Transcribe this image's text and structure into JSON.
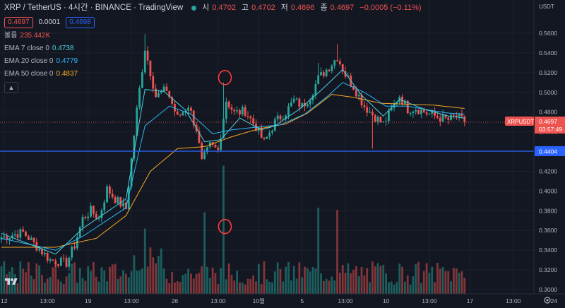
{
  "header": {
    "symbol": "XRP / TetherUS · 4시간 · BINANCE · TradingView",
    "o_label": "시",
    "o": "0.4702",
    "h_label": "고",
    "h": "0.4702",
    "l_label": "저",
    "l": "0.4696",
    "c_label": "종",
    "c": "0.4697",
    "change": "−0.0005 (−0.11%)",
    "bid": "0.4697",
    "spread": "0.0001",
    "ask": "0.4698"
  },
  "indicators": {
    "volume_label": "볼륨",
    "volume_value": "235.442K",
    "ema7_label": "EMA 7 close 0",
    "ema7_value": "0.4738",
    "ema20_label": "EMA 20 close 0",
    "ema20_value": "0.4779",
    "ema50_label": "EMA 50 close 0",
    "ema50_value": "0.4837",
    "collapse_icon": "chevron-up-icon"
  },
  "axis": {
    "currency": "USDT",
    "symbol_tag": "XRPUSDT",
    "last_price": "0.4697",
    "countdown": "03:57:49",
    "hline_price": "0.4404",
    "hline_value": 0.4404
  },
  "chart_data": {
    "type": "candlestick",
    "ylim": [
      0.3,
      0.565
    ],
    "yticks": [
      "0.5600",
      "0.5400",
      "0.5200",
      "0.5000",
      "0.4800",
      "0.4600",
      "0.4400",
      "0.4200",
      "0.4000",
      "0.3800",
      "0.3600",
      "0.3400",
      "0.3200",
      "0.3000"
    ],
    "ytick_values": [
      0.56,
      0.54,
      0.52,
      0.5,
      0.48,
      0.46,
      0.44,
      0.42,
      0.4,
      0.38,
      0.36,
      0.34,
      0.32,
      0.3
    ],
    "xticks": [
      "12",
      "13:00",
      "19",
      "13:00",
      "26",
      "13:00",
      "10월",
      "5",
      "13:00",
      "10",
      "13:00",
      "17",
      "13:00",
      "24"
    ],
    "xtick_index": [
      1,
      17,
      32,
      48,
      64,
      80,
      95,
      111,
      127,
      142,
      158,
      173,
      189,
      204
    ],
    "n_candles": 172,
    "anchors": [
      [
        0,
        0.353
      ],
      [
        8,
        0.358
      ],
      [
        18,
        0.33
      ],
      [
        24,
        0.327
      ],
      [
        27,
        0.345
      ],
      [
        30,
        0.372
      ],
      [
        33,
        0.38
      ],
      [
        36,
        0.372
      ],
      [
        39,
        0.402
      ],
      [
        42,
        0.392
      ],
      [
        46,
        0.382
      ],
      [
        50,
        0.482
      ],
      [
        53,
        0.545
      ],
      [
        57,
        0.496
      ],
      [
        61,
        0.503
      ],
      [
        65,
        0.474
      ],
      [
        69,
        0.487
      ],
      [
        72,
        0.463
      ],
      [
        74,
        0.429
      ],
      [
        77,
        0.446
      ],
      [
        80,
        0.441
      ],
      [
        83,
        0.492
      ],
      [
        86,
        0.479
      ],
      [
        90,
        0.481
      ],
      [
        94,
        0.465
      ],
      [
        97,
        0.449
      ],
      [
        101,
        0.47
      ],
      [
        105,
        0.48
      ],
      [
        108,
        0.492
      ],
      [
        111,
        0.486
      ],
      [
        114,
        0.496
      ],
      [
        117,
        0.514
      ],
      [
        121,
        0.526
      ],
      [
        124,
        0.536
      ],
      [
        127,
        0.518
      ],
      [
        130,
        0.506
      ],
      [
        134,
        0.486
      ],
      [
        138,
        0.475
      ],
      [
        141,
        0.468
      ],
      [
        144,
        0.482
      ],
      [
        147,
        0.497
      ],
      [
        150,
        0.483
      ],
      [
        153,
        0.484
      ],
      [
        157,
        0.479
      ],
      [
        161,
        0.475
      ],
      [
        165,
        0.472
      ],
      [
        168,
        0.476
      ],
      [
        171,
        0.4697
      ]
    ],
    "spikes": [
      [
        53,
        0.559,
        null
      ],
      [
        82,
        0.51,
        0.47
      ],
      [
        117,
        0.53,
        null
      ],
      [
        124,
        0.549,
        null
      ],
      [
        137,
        null,
        0.443
      ]
    ],
    "ema7": [
      [
        0,
        0.357
      ],
      [
        20,
        0.336
      ],
      [
        30,
        0.362
      ],
      [
        46,
        0.392
      ],
      [
        53,
        0.503
      ],
      [
        60,
        0.501
      ],
      [
        68,
        0.482
      ],
      [
        75,
        0.45
      ],
      [
        81,
        0.452
      ],
      [
        88,
        0.474
      ],
      [
        96,
        0.462
      ],
      [
        101,
        0.466
      ],
      [
        110,
        0.483
      ],
      [
        118,
        0.502
      ],
      [
        126,
        0.523
      ],
      [
        133,
        0.497
      ],
      [
        141,
        0.476
      ],
      [
        147,
        0.493
      ],
      [
        156,
        0.483
      ],
      [
        165,
        0.476
      ],
      [
        171,
        0.4738
      ]
    ],
    "ema20": [
      [
        0,
        0.352
      ],
      [
        20,
        0.34
      ],
      [
        30,
        0.354
      ],
      [
        46,
        0.383
      ],
      [
        53,
        0.466
      ],
      [
        62,
        0.486
      ],
      [
        70,
        0.478
      ],
      [
        78,
        0.458
      ],
      [
        85,
        0.462
      ],
      [
        95,
        0.465
      ],
      [
        103,
        0.467
      ],
      [
        112,
        0.478
      ],
      [
        120,
        0.495
      ],
      [
        126,
        0.51
      ],
      [
        134,
        0.5
      ],
      [
        142,
        0.486
      ],
      [
        150,
        0.486
      ],
      [
        158,
        0.482
      ],
      [
        165,
        0.479
      ],
      [
        171,
        0.4779
      ]
    ],
    "ema50": [
      [
        0,
        0.343
      ],
      [
        20,
        0.343
      ],
      [
        35,
        0.352
      ],
      [
        46,
        0.375
      ],
      [
        55,
        0.42
      ],
      [
        65,
        0.443
      ],
      [
        75,
        0.445
      ],
      [
        85,
        0.455
      ],
      [
        95,
        0.463
      ],
      [
        105,
        0.468
      ],
      [
        113,
        0.479
      ],
      [
        122,
        0.498
      ],
      [
        130,
        0.495
      ],
      [
        140,
        0.489
      ],
      [
        150,
        0.488
      ],
      [
        160,
        0.487
      ],
      [
        171,
        0.4837
      ]
    ],
    "volume_max": 235442,
    "volume_spikes": [
      [
        53,
        0.28
      ],
      [
        75,
        0.35
      ],
      [
        82,
        0.55
      ],
      [
        117,
        0.37
      ],
      [
        124,
        0.36
      ]
    ],
    "annotations": [
      {
        "candle": 82,
        "price": 0.515,
        "label": "circle"
      },
      {
        "candle": 82,
        "price": 0.364,
        "label": "circle"
      }
    ],
    "colors": {
      "up": "#26a69a",
      "down": "#ef5350",
      "ema7": "#4dd0e1",
      "ema20": "#29b6f6",
      "ema50": "#f9a825",
      "hline": "#2962ff",
      "annotation": "#ff3b3b"
    }
  }
}
